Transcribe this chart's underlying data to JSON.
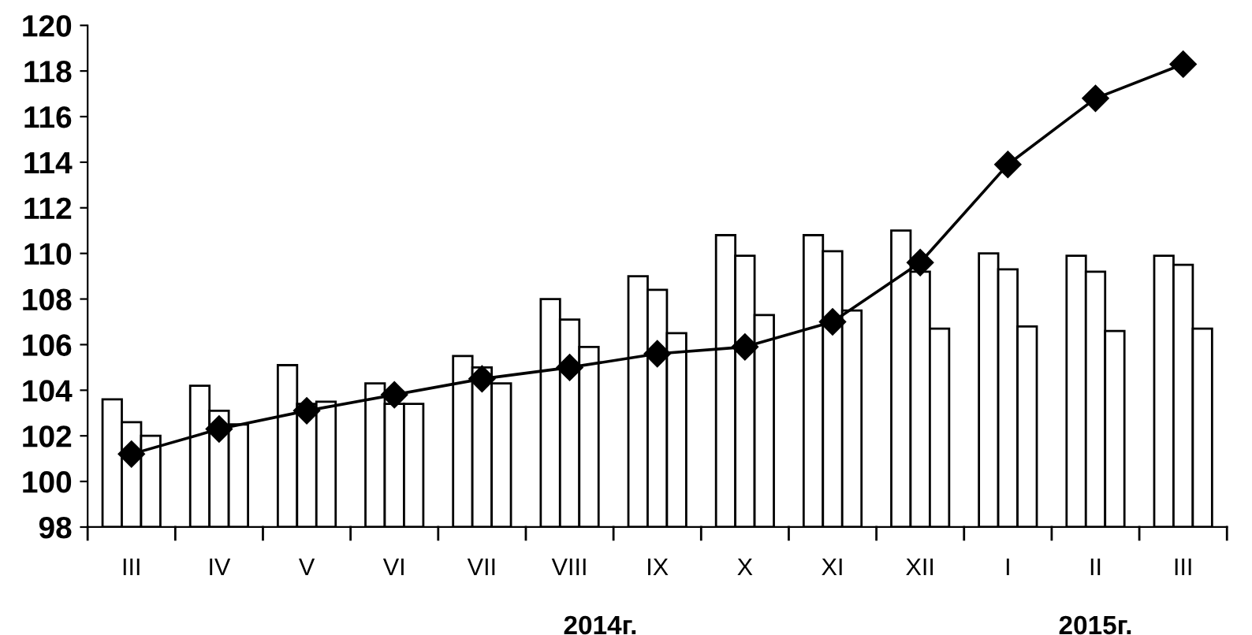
{
  "chart_data": {
    "type": "bar",
    "categories": [
      "III",
      "IV",
      "V",
      "VI",
      "VII",
      "VIII",
      "IX",
      "X",
      "XI",
      "XII",
      "I",
      "II",
      "III"
    ],
    "series": [
      {
        "color": "#ffffff",
        "values": [
          103.6,
          104.2,
          105.1,
          104.3,
          105.5,
          108.0,
          109.0,
          110.8,
          110.8,
          111.0,
          110.0,
          109.9,
          109.9
        ]
      },
      {
        "color": "#ffffff",
        "values": [
          102.6,
          103.1,
          103.4,
          103.4,
          105.0,
          107.1,
          108.4,
          109.9,
          110.1,
          109.2,
          109.3,
          109.2,
          109.5
        ]
      },
      {
        "color": "#ffffff",
        "values": [
          102.0,
          102.5,
          103.5,
          103.4,
          104.3,
          105.9,
          106.5,
          107.3,
          107.5,
          106.7,
          106.8,
          106.6,
          106.7
        ]
      },
      {
        "type": "line",
        "color": "#000000",
        "marker": "diamond",
        "values": [
          101.2,
          102.3,
          103.1,
          103.8,
          104.5,
          105.0,
          105.6,
          105.9,
          107.0,
          109.6,
          113.9,
          116.8,
          118.3
        ]
      }
    ],
    "ylim": [
      98,
      120
    ],
    "yticks": [
      98,
      100,
      102,
      104,
      106,
      108,
      110,
      112,
      114,
      116,
      118,
      120
    ],
    "grid": false,
    "legend": false,
    "annotations": [
      "2014г.",
      "2015г."
    ]
  }
}
